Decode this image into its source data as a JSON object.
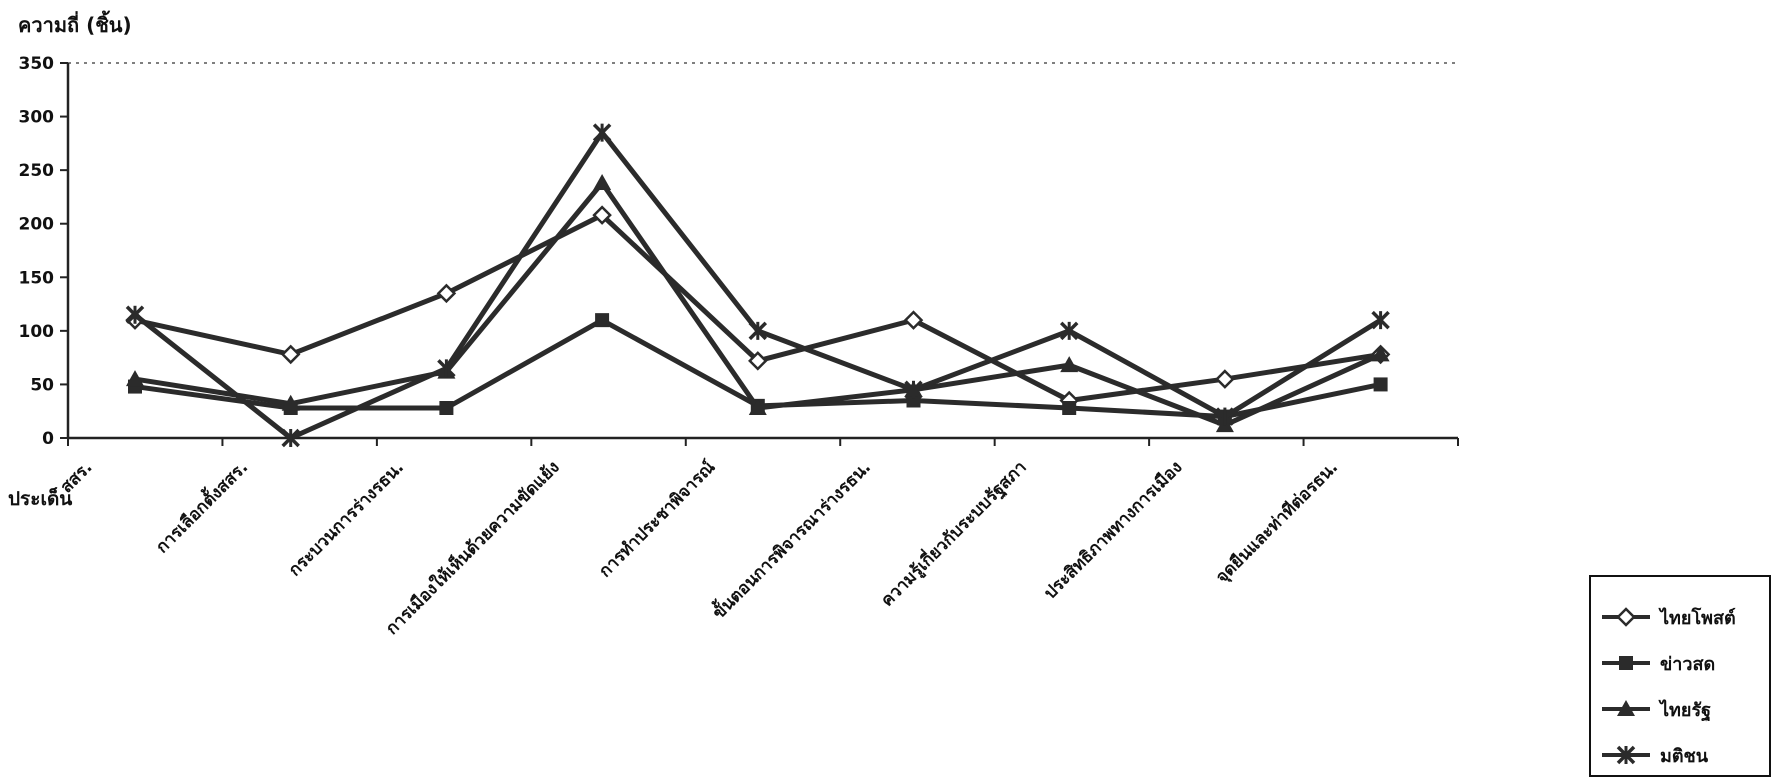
{
  "chart_data": {
    "type": "line",
    "ylabel": "ความถี่ (ชิ้น)",
    "xlabel": "ประเด็น",
    "ylim": [
      0,
      350
    ],
    "yticks": [
      0,
      50,
      100,
      150,
      200,
      250,
      300,
      350
    ],
    "grid": "dotted line at 350",
    "legend_placement": "bottom-right",
    "categories": [
      "สสร.",
      "การเลือกตั้งสสร.",
      "กระบวนการร่างรธน.",
      "การเมืองให้เห็นด้วยความขัดแย้ง",
      "การทำประชาพิจารณ์",
      "ขั้นตอนการพิจารณาร่างรธน.",
      "ความรู้เกี่ยวกับระบบรัฐสภา",
      "ประสิทธิภาพทางการเมือง",
      "จุดยืนและท่าทีต่อรธน."
    ],
    "series": [
      {
        "name": "ไทยโพสต์",
        "marker": "diamond-open",
        "values": [
          110,
          78,
          135,
          208,
          72,
          110,
          35,
          55,
          78
        ]
      },
      {
        "name": "ข่าวสด",
        "marker": "square",
        "values": [
          48,
          28,
          28,
          110,
          30,
          35,
          28,
          20,
          50
        ]
      },
      {
        "name": "ไทยรัฐ",
        "marker": "triangle",
        "values": [
          55,
          32,
          62,
          238,
          28,
          45,
          68,
          12,
          78
        ]
      },
      {
        "name": "มติชน",
        "marker": "x-star",
        "values": [
          115,
          0,
          65,
          285,
          100,
          45,
          100,
          20,
          110
        ]
      }
    ],
    "colors": {
      "line": "#2b2b2b",
      "axis": "#222222",
      "background": "#ffffff"
    }
  }
}
